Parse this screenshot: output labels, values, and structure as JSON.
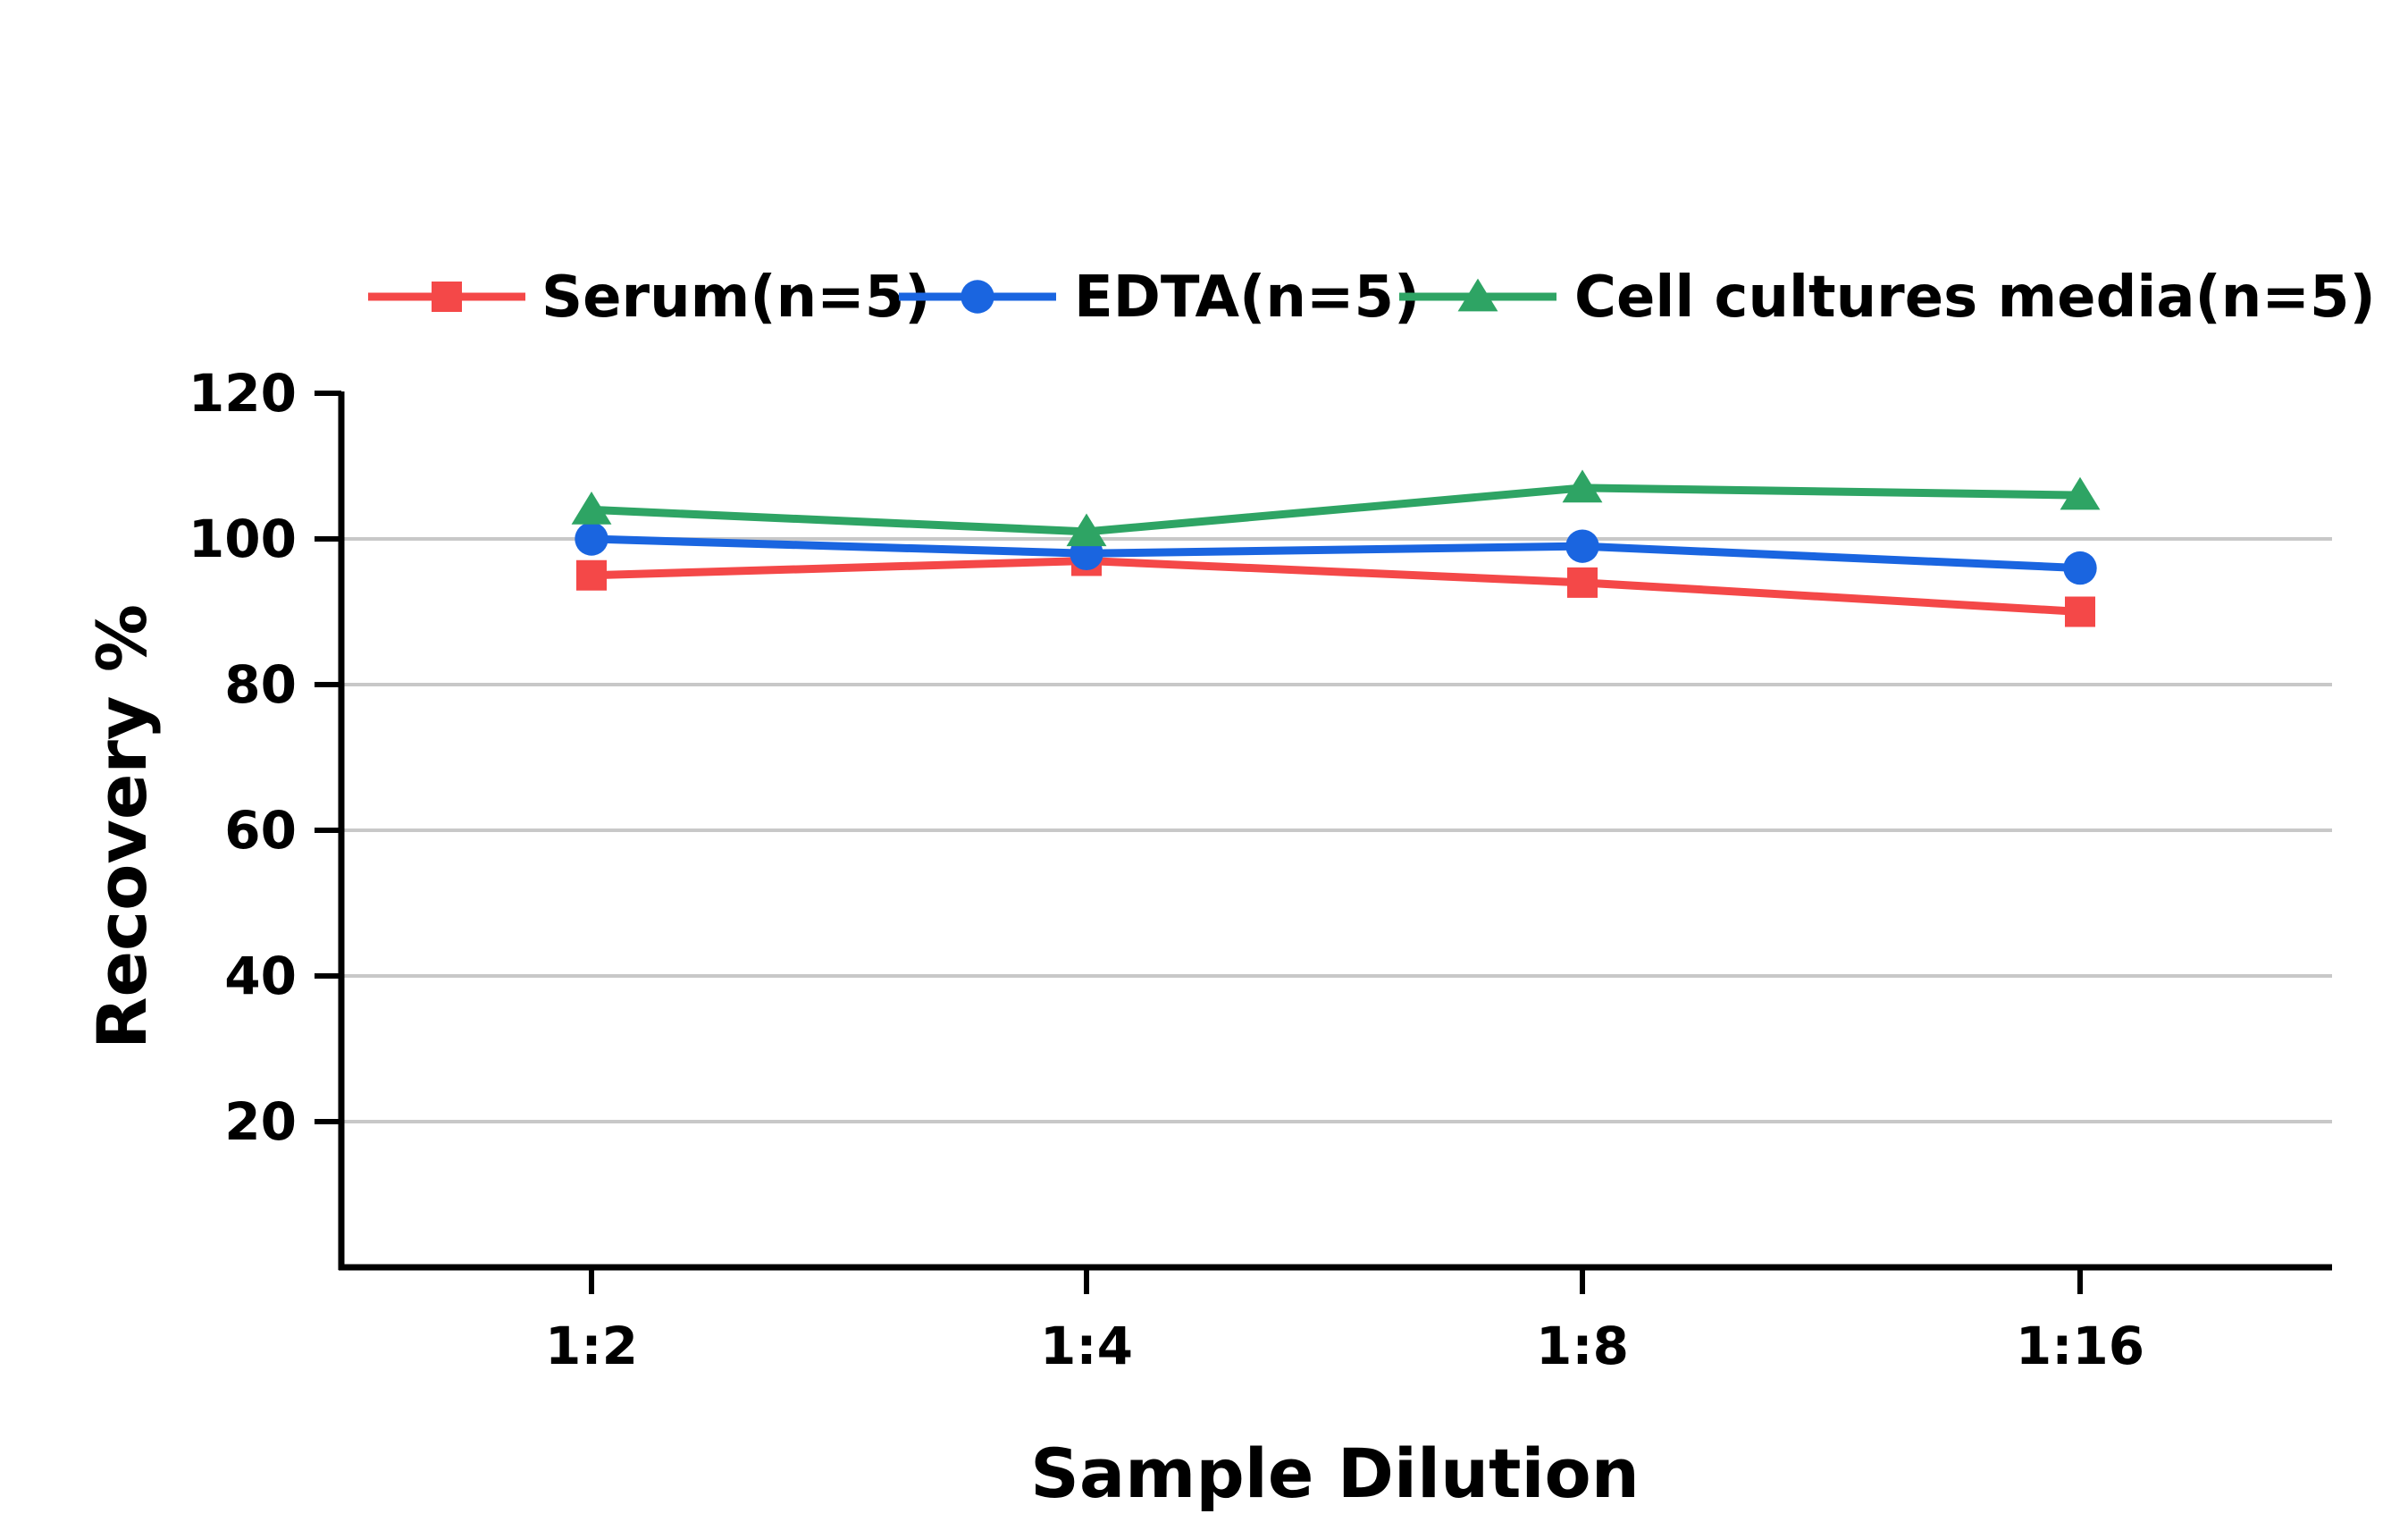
{
  "chart_data": {
    "type": "line",
    "categories": [
      "1:2",
      "1:4",
      "1:8",
      "1:16"
    ],
    "series": [
      {
        "name": "Serum(n=5)",
        "values": [
          95,
          97,
          94,
          90
        ],
        "color": "#f44848",
        "marker": "square"
      },
      {
        "name": "EDTA(n=5)",
        "values": [
          100,
          98,
          99,
          96
        ],
        "color": "#1a65e0",
        "marker": "circle"
      },
      {
        "name": "Cell cultures media(n=5)",
        "values": [
          104,
          101,
          107,
          106
        ],
        "color": "#2ea464",
        "marker": "triangle"
      }
    ],
    "xlabel": "Sample Dilution",
    "ylabel": "Recovery %",
    "ylim": [
      0,
      120
    ],
    "yticks": [
      20,
      40,
      60,
      80,
      100,
      120
    ],
    "grid": "horizontal",
    "legend_position": "top"
  }
}
